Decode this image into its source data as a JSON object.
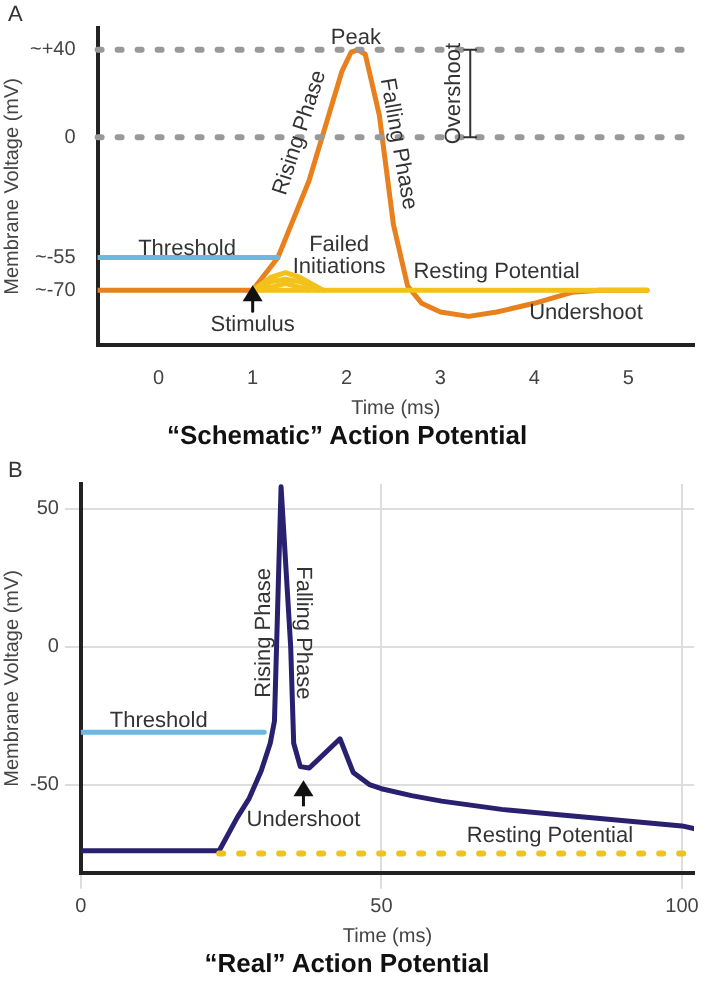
{
  "chart_data": [
    {
      "type": "line",
      "title": "“Schematic” Action Potential",
      "xlabel": "Time (ms)",
      "ylabel": "Membrane Voltage (mV)",
      "xlim": [
        -0.65,
        5.7
      ],
      "ylim": [
        -95,
        50
      ],
      "xticks": [
        0,
        1,
        2,
        3,
        4,
        5
      ],
      "yticks": [
        {
          "value": 40,
          "label": "~+40"
        },
        0,
        {
          "value": -55,
          "label": "~-55"
        },
        {
          "value": -70,
          "label": "~-70"
        }
      ],
      "grid": false,
      "legend": false,
      "series": [
        {
          "color": "#6cb8e0",
          "x": [
            -0.65,
            1.27
          ],
          "values": [
            -55,
            -55
          ]
        },
        {
          "color": "#f2c21b",
          "x": [
            1.0,
            5.2
          ],
          "values": [
            -70,
            -70
          ]
        },
        {
          "color": "#f2c21b",
          "x": [
            1.0,
            1.2,
            1.35,
            1.5,
            1.75
          ],
          "values": [
            -70,
            -64,
            -62,
            -64,
            -70
          ]
        },
        {
          "color": "#f2c21b",
          "x": [
            1.05,
            1.2,
            1.35,
            1.5,
            1.7
          ],
          "values": [
            -70,
            -66,
            -65,
            -66,
            -70
          ]
        },
        {
          "color": "#f2c21b",
          "x": [
            1.1,
            1.25,
            1.35,
            1.45,
            1.6
          ],
          "values": [
            -70,
            -68,
            -67,
            -68,
            -70
          ]
        },
        {
          "color": "#e8801e",
          "x": [
            -0.65,
            1.0,
            1.27,
            1.6,
            1.95,
            2.05,
            2.12,
            2.2,
            2.35,
            2.5,
            2.65,
            2.8,
            3.0,
            3.3,
            3.6,
            4.0,
            4.4,
            4.7,
            5.2
          ],
          "values": [
            -70,
            -70,
            -55,
            -20,
            30,
            39,
            40,
            38,
            10,
            -40,
            -68,
            -76,
            -80,
            -82,
            -80,
            -76,
            -71,
            -70,
            -70
          ]
        }
      ],
      "ref_lines": [
        {
          "axis": "y",
          "value": 40,
          "color": "#999999",
          "line_style": "dotted"
        },
        {
          "axis": "y",
          "value": 0,
          "color": "#999999",
          "line_style": "dotted"
        }
      ],
      "annotations": [
        "A",
        "Peak",
        "Rising Phase",
        "Falling Phase",
        "Overshoot",
        "Failed Initiations",
        "Resting Potential",
        "Undershoot",
        "Threshold",
        "Stimulus"
      ]
    },
    {
      "type": "line",
      "title": "“Real” Action Potential",
      "xlabel": "Time (ms)",
      "ylabel": "Membrane Voltage (mV)",
      "xlim": [
        0,
        102
      ],
      "ylim": [
        -82,
        59
      ],
      "xticks": [
        0,
        50,
        100
      ],
      "yticks": [
        -50,
        0,
        50
      ],
      "grid": true,
      "legend": false,
      "series": [
        {
          "color": "#6cb8e0",
          "x": [
            0,
            30.5
          ],
          "values": [
            -31,
            -31
          ]
        },
        {
          "color": "#f2c21b",
          "line_style": "dotted",
          "x": [
            23,
            102
          ],
          "values": [
            -75,
            -75
          ]
        },
        {
          "color": "#2a2070",
          "x": [
            0,
            23,
            24,
            26,
            28,
            30,
            31.5,
            32.2,
            33.3,
            34.9,
            35.4,
            36.5,
            38,
            43.1,
            45.3,
            48,
            50,
            55,
            60,
            70,
            80,
            90,
            100,
            102
          ],
          "values": [
            -74,
            -74,
            -70,
            -62,
            -55,
            -45,
            -35,
            -27,
            58,
            0,
            -35,
            -43.5,
            -44,
            -33.4,
            -45.6,
            -50,
            -51.5,
            -54,
            -56,
            -59,
            -61,
            -63,
            -65,
            -66
          ]
        }
      ],
      "annotations": [
        "B",
        "Rising Phase",
        "Falling Phase",
        "Threshold",
        "Undershoot",
        "Resting Potential"
      ]
    }
  ]
}
